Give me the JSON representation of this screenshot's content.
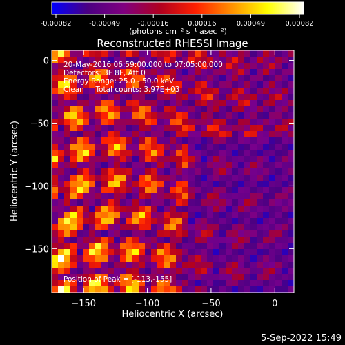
{
  "colorbar": {
    "ticks": [
      "-0.00082",
      "-0.00049",
      "-0.00016",
      "0.00016",
      "0.00049",
      "0.00082"
    ],
    "units": "(photons cm⁻² s⁻¹ asec⁻²)",
    "stops": [
      "#0000ff",
      "#4b0082",
      "#800080",
      "#b00020",
      "#ff2000",
      "#ff9000",
      "#ffff00",
      "#ffffff"
    ]
  },
  "chart_data": {
    "type": "heatmap",
    "title": "Reconstructed RHESSI Image",
    "xlabel": "Heliocentric X (arcsec)",
    "ylabel": "Heliocentric Y (arcsec)",
    "xlim": [
      -175,
      15
    ],
    "ylim": [
      -185,
      8
    ],
    "xticks": [
      -150,
      -100,
      -50,
      0
    ],
    "yticks": [
      0,
      -50,
      -100,
      -150
    ],
    "value_range": [
      -0.00082,
      0.00082
    ],
    "peak": {
      "x": -113,
      "y": -155
    },
    "annotations": {
      "time": "20-May-2016 06:59:00.000 to 07:05:00.000",
      "detectors": "Detectors: 3F 8F, Att 0",
      "energy": "Energy Range: 25.0 - 50.0 keV",
      "clean": "Clean     Total counts: 3.97E+03",
      "peak_label": "Position of Peak = [-113,-155]"
    }
  },
  "footer": {
    "timestamp": "5-Sep-2022 15:49"
  }
}
